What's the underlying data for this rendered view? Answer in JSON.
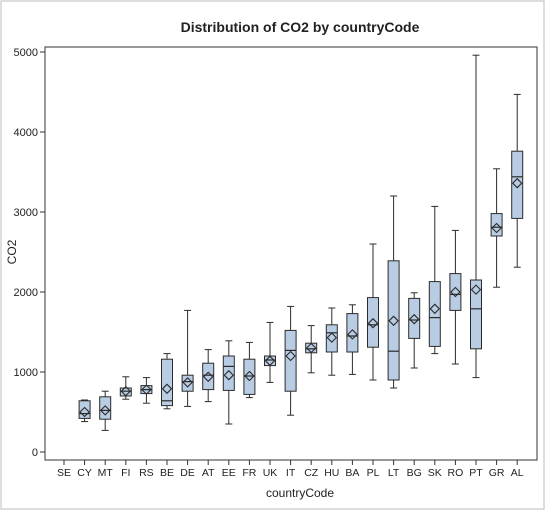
{
  "chart_data": {
    "type": "boxplot",
    "title": "Distribution of CO2 by countryCode",
    "xlabel": "countryCode",
    "ylabel": "CO2",
    "ylim": [
      0,
      5000
    ],
    "yticks": [
      0,
      1000,
      2000,
      3000,
      4000,
      5000
    ],
    "ytick_labels": [
      "0",
      "1000",
      "2000",
      "3000",
      "4000",
      "5000"
    ],
    "grid": false,
    "legend": "none",
    "colors": {
      "box_fill": "#b8cce4",
      "box_stroke": "#2b2b2b",
      "axis": "#333333"
    },
    "categories": [
      "SE",
      "CY",
      "MT",
      "FI",
      "RS",
      "BE",
      "DE",
      "AT",
      "EE",
      "FR",
      "UK",
      "IT",
      "CZ",
      "HU",
      "BA",
      "PL",
      "LT",
      "BG",
      "SK",
      "RO",
      "PT",
      "GR",
      "AL"
    ],
    "boxes": [
      {
        "code": "SE",
        "present": false
      },
      {
        "code": "CY",
        "min": 380,
        "q1": 420,
        "median": 480,
        "q3": 640,
        "max": 650,
        "mean": 500
      },
      {
        "code": "MT",
        "min": 270,
        "q1": 410,
        "median": 520,
        "q3": 690,
        "max": 760,
        "mean": 520
      },
      {
        "code": "FI",
        "min": 660,
        "q1": 700,
        "median": 760,
        "q3": 800,
        "max": 940,
        "mean": 760
      },
      {
        "code": "RS",
        "min": 610,
        "q1": 730,
        "median": 780,
        "q3": 830,
        "max": 930,
        "mean": 780
      },
      {
        "code": "BE",
        "min": 540,
        "q1": 580,
        "median": 640,
        "q3": 1160,
        "max": 1230,
        "mean": 790
      },
      {
        "code": "DE",
        "min": 570,
        "q1": 760,
        "median": 880,
        "q3": 960,
        "max": 1770,
        "mean": 870
      },
      {
        "code": "AT",
        "min": 630,
        "q1": 780,
        "median": 960,
        "q3": 1110,
        "max": 1280,
        "mean": 940
      },
      {
        "code": "EE",
        "min": 350,
        "q1": 770,
        "median": 1070,
        "q3": 1200,
        "max": 1390,
        "mean": 960
      },
      {
        "code": "FR",
        "min": 680,
        "q1": 720,
        "median": 950,
        "q3": 1160,
        "max": 1370,
        "mean": 950
      },
      {
        "code": "UK",
        "min": 870,
        "q1": 1080,
        "median": 1150,
        "q3": 1200,
        "max": 1620,
        "mean": 1140
      },
      {
        "code": "IT",
        "min": 460,
        "q1": 760,
        "median": 1270,
        "q3": 1520,
        "max": 1820,
        "mean": 1200
      },
      {
        "code": "CZ",
        "min": 990,
        "q1": 1240,
        "median": 1290,
        "q3": 1360,
        "max": 1580,
        "mean": 1300
      },
      {
        "code": "HU",
        "min": 960,
        "q1": 1250,
        "median": 1490,
        "q3": 1590,
        "max": 1800,
        "mean": 1430
      },
      {
        "code": "BA",
        "min": 970,
        "q1": 1250,
        "median": 1450,
        "q3": 1730,
        "max": 1840,
        "mean": 1470
      },
      {
        "code": "PL",
        "min": 900,
        "q1": 1310,
        "median": 1590,
        "q3": 1930,
        "max": 2600,
        "mean": 1610
      },
      {
        "code": "LT",
        "min": 800,
        "q1": 900,
        "median": 1260,
        "q3": 2390,
        "max": 3200,
        "mean": 1640
      },
      {
        "code": "BG",
        "min": 1050,
        "q1": 1420,
        "median": 1650,
        "q3": 1920,
        "max": 1990,
        "mean": 1660
      },
      {
        "code": "SK",
        "min": 1230,
        "q1": 1320,
        "median": 1680,
        "q3": 2130,
        "max": 3070,
        "mean": 1790
      },
      {
        "code": "RO",
        "min": 1100,
        "q1": 1770,
        "median": 1970,
        "q3": 2230,
        "max": 2770,
        "mean": 2000
      },
      {
        "code": "PT",
        "min": 930,
        "q1": 1290,
        "median": 1790,
        "q3": 2150,
        "max": 4960,
        "mean": 2030
      },
      {
        "code": "GR",
        "min": 2060,
        "q1": 2700,
        "median": 2810,
        "q3": 2980,
        "max": 3540,
        "mean": 2800
      },
      {
        "code": "AL",
        "min": 2310,
        "q1": 2920,
        "median": 3440,
        "q3": 3760,
        "max": 4470,
        "mean": 3360
      }
    ]
  }
}
